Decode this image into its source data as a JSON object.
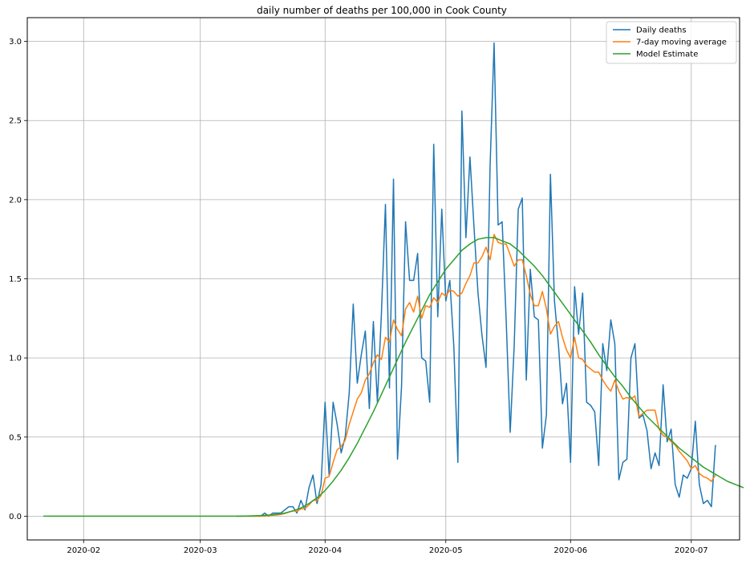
{
  "chart_data": {
    "type": "line",
    "title": "daily number of deaths per 100,000 in Cook County",
    "xlabel": "",
    "ylabel": "",
    "x_axis": {
      "type": "date",
      "range": [
        "2020-01-18",
        "2020-07-13"
      ],
      "ticks": [
        "2020-02-01",
        "2020-03-01",
        "2020-04-01",
        "2020-05-01",
        "2020-06-01",
        "2020-07-01"
      ],
      "tick_labels": [
        "2020-02",
        "2020-03",
        "2020-04",
        "2020-05",
        "2020-06",
        "2020-07"
      ]
    },
    "y_axis": {
      "range": [
        -0.15,
        3.15
      ],
      "ticks": [
        0,
        0.5,
        1,
        1.5,
        2,
        2.5,
        3
      ],
      "tick_labels": [
        "0.0",
        "0.5",
        "1.0",
        "1.5",
        "2.0",
        "2.5",
        "3.0"
      ]
    },
    "grid": true,
    "legend": {
      "position": "top-right",
      "entries": [
        "Daily deaths",
        "7-day moving average",
        "Model Estimate"
      ]
    },
    "series": [
      {
        "name": "Daily deaths",
        "color": "#1f77b4",
        "start_date": "2020-03-10",
        "values": [
          0,
          0,
          0,
          0,
          0,
          0,
          0,
          0.02,
          0,
          0.02,
          0.02,
          0.02,
          0.04,
          0.06,
          0.06,
          0.02,
          0.1,
          0.04,
          0.18,
          0.26,
          0.08,
          0.2,
          0.72,
          0.26,
          0.72,
          0.58,
          0.4,
          0.5,
          0.78,
          1.34,
          0.84,
          1.02,
          1.17,
          0.68,
          1.23,
          0.72,
          1.28,
          1.97,
          0.81,
          2.13,
          0.36,
          0.82,
          1.86,
          1.49,
          1.49,
          1.66,
          1.0,
          0.98,
          0.72,
          2.35,
          1.26,
          1.94,
          1.36,
          1.49,
          1.07,
          0.34,
          2.56,
          1.76,
          2.27,
          1.83,
          1.41,
          1.14,
          0.94,
          2.21,
          2.99,
          1.84,
          1.86,
          1.24,
          0.53,
          1.08,
          1.94,
          2.01,
          0.86,
          1.56,
          1.26,
          1.24,
          0.43,
          0.64,
          2.16,
          1.36,
          1.08,
          0.71,
          0.84,
          0.34,
          1.45,
          1.15,
          1.41,
          0.72,
          0.7,
          0.66,
          0.32,
          1.09,
          0.92,
          1.24,
          1.09,
          0.23,
          0.34,
          0.36,
          1.0,
          1.09,
          0.62,
          0.64,
          0.54,
          0.3,
          0.4,
          0.32,
          0.83,
          0.47,
          0.55,
          0.2,
          0.12,
          0.26,
          0.24,
          0.3,
          0.6,
          0.2,
          0.08,
          0.1,
          0.06,
          0.45
        ]
      },
      {
        "name": "7-day moving average",
        "color": "#ff7f0e",
        "start_date": "2020-03-10",
        "values": [
          0,
          0,
          0,
          0,
          0,
          0,
          0,
          0,
          0.003,
          0.006,
          0.008,
          0.011,
          0.017,
          0.026,
          0.034,
          0.031,
          0.046,
          0.049,
          0.071,
          0.1,
          0.1,
          0.13,
          0.24,
          0.25,
          0.34,
          0.42,
          0.44,
          0.48,
          0.58,
          0.66,
          0.74,
          0.78,
          0.86,
          0.9,
          0.97,
          1.02,
          0.99,
          1.13,
          1.1,
          1.24,
          1.18,
          1.14,
          1.31,
          1.35,
          1.29,
          1.39,
          1.25,
          1.33,
          1.32,
          1.38,
          1.35,
          1.41,
          1.39,
          1.43,
          1.42,
          1.39,
          1.41,
          1.47,
          1.52,
          1.6,
          1.6,
          1.64,
          1.7,
          1.62,
          1.78,
          1.73,
          1.72,
          1.72,
          1.65,
          1.58,
          1.62,
          1.62,
          1.52,
          1.4,
          1.33,
          1.33,
          1.42,
          1.31,
          1.15,
          1.2,
          1.23,
          1.13,
          1.05,
          1.0,
          1.13,
          1.0,
          0.99,
          0.95,
          0.93,
          0.91,
          0.91,
          0.86,
          0.82,
          0.79,
          0.86,
          0.79,
          0.74,
          0.75,
          0.74,
          0.76,
          0.63,
          0.65,
          0.67,
          0.67,
          0.67,
          0.55,
          0.51,
          0.5,
          0.47,
          0.45,
          0.41,
          0.38,
          0.35,
          0.3,
          0.32,
          0.27,
          0.25,
          0.24,
          0.22,
          0.26
        ]
      },
      {
        "name": "Model Estimate",
        "color": "#2ca02c",
        "start_date": "2020-01-22",
        "step_days": 2,
        "values": [
          0,
          0,
          0,
          0,
          0,
          0,
          0,
          0,
          0,
          0,
          0,
          0,
          0,
          0,
          0,
          0,
          0,
          0,
          0,
          0,
          0,
          0,
          0,
          0,
          0,
          0.001,
          0.002,
          0.004,
          0.007,
          0.012,
          0.02,
          0.033,
          0.052,
          0.08,
          0.116,
          0.162,
          0.222,
          0.29,
          0.37,
          0.46,
          0.56,
          0.66,
          0.77,
          0.88,
          0.99,
          1.1,
          1.2,
          1.3,
          1.4,
          1.48,
          1.56,
          1.62,
          1.68,
          1.72,
          1.75,
          1.76,
          1.76,
          1.74,
          1.72,
          1.68,
          1.63,
          1.58,
          1.52,
          1.45,
          1.38,
          1.31,
          1.24,
          1.17,
          1.1,
          1.02,
          0.95,
          0.88,
          0.82,
          0.75,
          0.69,
          0.63,
          0.58,
          0.53,
          0.48,
          0.43,
          0.39,
          0.35,
          0.31,
          0.28,
          0.25,
          0.22,
          0.2,
          0.18
        ]
      }
    ]
  }
}
